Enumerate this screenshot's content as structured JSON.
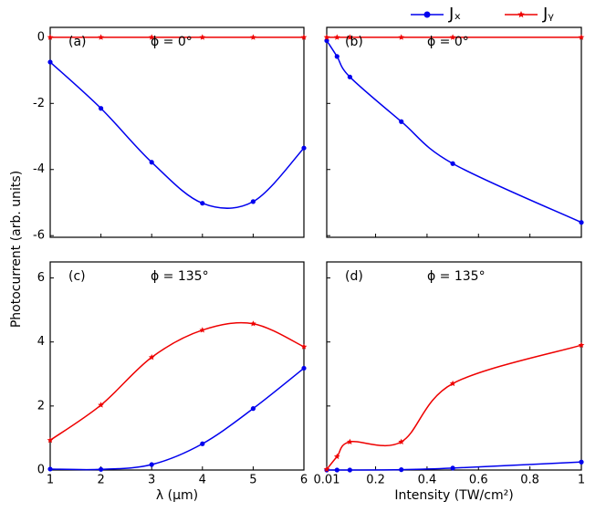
{
  "chart_data": [
    {
      "type": "line",
      "label": "(a)",
      "annotation": "ϕ = 0°",
      "ylabel": "Photocurrent (arb. units)",
      "x": [
        1,
        2,
        3,
        4,
        5,
        6
      ],
      "xlim": [
        1,
        6
      ],
      "xticks": [
        1,
        2,
        3,
        4,
        5,
        6
      ],
      "show_xtick_labels": false,
      "ylim": [
        -6.05,
        0.3
      ],
      "yticks": [
        0,
        -2,
        -4,
        -6
      ],
      "show_ytick_labels": true,
      "series": [
        {
          "name": "Jₓ",
          "color": "#0000ee",
          "marker": "circle",
          "values": [
            -0.75,
            -2.15,
            -3.78,
            -5.02,
            -4.97,
            -3.35
          ]
        },
        {
          "name": "Jᵧ",
          "color": "#ee0000",
          "marker": "star",
          "values": [
            0,
            0,
            0,
            0,
            0,
            0
          ]
        }
      ]
    },
    {
      "type": "line",
      "label": "(b)",
      "annotation": "ϕ = 0°",
      "x": [
        0.01,
        0.05,
        0.1,
        0.3,
        0.5,
        1
      ],
      "xlim": [
        0.01,
        1
      ],
      "xticks": [
        0.01,
        0.2,
        0.4,
        0.6,
        0.8,
        1
      ],
      "show_xtick_labels": false,
      "ylim": [
        -6.05,
        0.3
      ],
      "yticks": [
        0,
        -2,
        -4,
        -6
      ],
      "show_ytick_labels": false,
      "series": [
        {
          "color": "#0000ee",
          "marker": "circle",
          "values": [
            -0.1,
            -0.58,
            -1.2,
            -2.55,
            -3.82,
            -5.6
          ]
        },
        {
          "color": "#ee0000",
          "marker": "star",
          "values": [
            0,
            0,
            0,
            0,
            0,
            0
          ]
        }
      ]
    },
    {
      "type": "line",
      "label": "(c)",
      "annotation": "ϕ = 135°",
      "xlabel": "λ (μm)",
      "x": [
        1,
        2,
        3,
        4,
        5,
        6
      ],
      "xlim": [
        1,
        6
      ],
      "xticks": [
        1,
        2,
        3,
        4,
        5,
        6
      ],
      "show_xtick_labels": true,
      "ylim": [
        0,
        6.5
      ],
      "yticks": [
        0,
        2,
        4,
        6
      ],
      "show_ytick_labels": true,
      "series": [
        {
          "color": "#0000ee",
          "marker": "circle",
          "values": [
            0.03,
            0.02,
            0.17,
            0.82,
            1.92,
            3.18
          ]
        },
        {
          "color": "#ee0000",
          "marker": "star",
          "values": [
            0.93,
            2.03,
            3.52,
            4.37,
            4.57,
            3.85
          ]
        }
      ]
    },
    {
      "type": "line",
      "label": "(d)",
      "annotation": "ϕ = 135°",
      "xlabel": "Intensity (TW/cm²)",
      "x": [
        0.01,
        0.05,
        0.1,
        0.3,
        0.5,
        1
      ],
      "xlim": [
        0.01,
        1
      ],
      "xticks": [
        0.01,
        0.2,
        0.4,
        0.6,
        0.8,
        1
      ],
      "show_xtick_labels": true,
      "ylim": [
        0,
        6.5
      ],
      "yticks": [
        0,
        2,
        4,
        6
      ],
      "show_ytick_labels": false,
      "series": [
        {
          "color": "#0000ee",
          "marker": "circle",
          "values": [
            0,
            0,
            0,
            0.01,
            0.06,
            0.25
          ]
        },
        {
          "color": "#ee0000",
          "marker": "star",
          "values": [
            0.02,
            0.42,
            0.88,
            0.88,
            2.7,
            3.9
          ]
        }
      ]
    }
  ]
}
